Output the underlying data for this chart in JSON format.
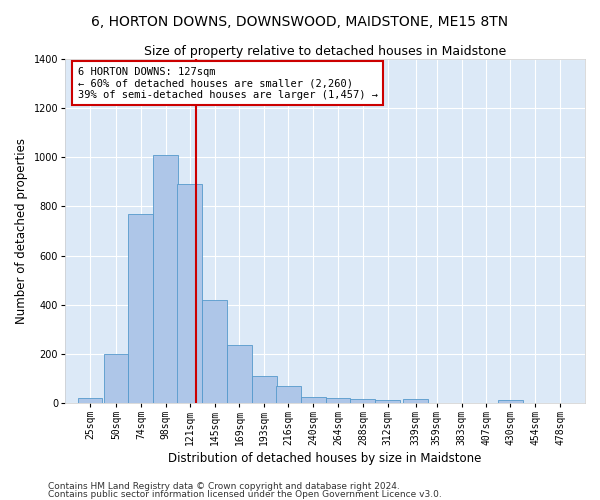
{
  "title": "6, HORTON DOWNS, DOWNSWOOD, MAIDSTONE, ME15 8TN",
  "subtitle": "Size of property relative to detached houses in Maidstone",
  "xlabel": "Distribution of detached houses by size in Maidstone",
  "ylabel": "Number of detached properties",
  "bar_heights": [
    20,
    200,
    770,
    1010,
    890,
    420,
    235,
    110,
    70,
    25,
    20,
    15,
    10,
    15,
    0,
    0,
    0,
    10,
    0,
    0
  ],
  "bin_labels": [
    "25sqm",
    "50sqm",
    "74sqm",
    "98sqm",
    "121sqm",
    "145sqm",
    "169sqm",
    "193sqm",
    "216sqm",
    "240sqm",
    "264sqm",
    "288sqm",
    "312sqm",
    "339sqm",
    "359sqm",
    "383sqm",
    "407sqm",
    "430sqm",
    "454sqm",
    "478sqm"
  ],
  "bin_centers": [
    25,
    50,
    74,
    98,
    121,
    145,
    169,
    193,
    216,
    240,
    264,
    288,
    312,
    339,
    359,
    383,
    407,
    430,
    454,
    478
  ],
  "bin_width": 24,
  "bar_color": "#aec6e8",
  "bar_edge_color": "#5599cc",
  "property_size": 127,
  "vline_color": "#cc0000",
  "annotation_title": "6 HORTON DOWNS: 127sqm",
  "annotation_line1": "← 60% of detached houses are smaller (2,260)",
  "annotation_line2": "39% of semi-detached houses are larger (1,457) →",
  "annotation_box_color": "#cc0000",
  "ylim": [
    0,
    1400
  ],
  "yticks": [
    0,
    200,
    400,
    600,
    800,
    1000,
    1200,
    1400
  ],
  "xlim_left": 1,
  "xlim_right": 502,
  "bar_color_light": "#dce9f7",
  "plot_bg_color": "#dce9f7",
  "grid_color": "#ffffff",
  "title_fontsize": 10,
  "subtitle_fontsize": 9,
  "axis_label_fontsize": 8.5,
  "tick_fontsize": 7,
  "annotation_fontsize": 7.5,
  "footer_fontsize": 6.5,
  "footer1": "Contains HM Land Registry data © Crown copyright and database right 2024.",
  "footer2": "Contains public sector information licensed under the Open Government Licence v3.0."
}
